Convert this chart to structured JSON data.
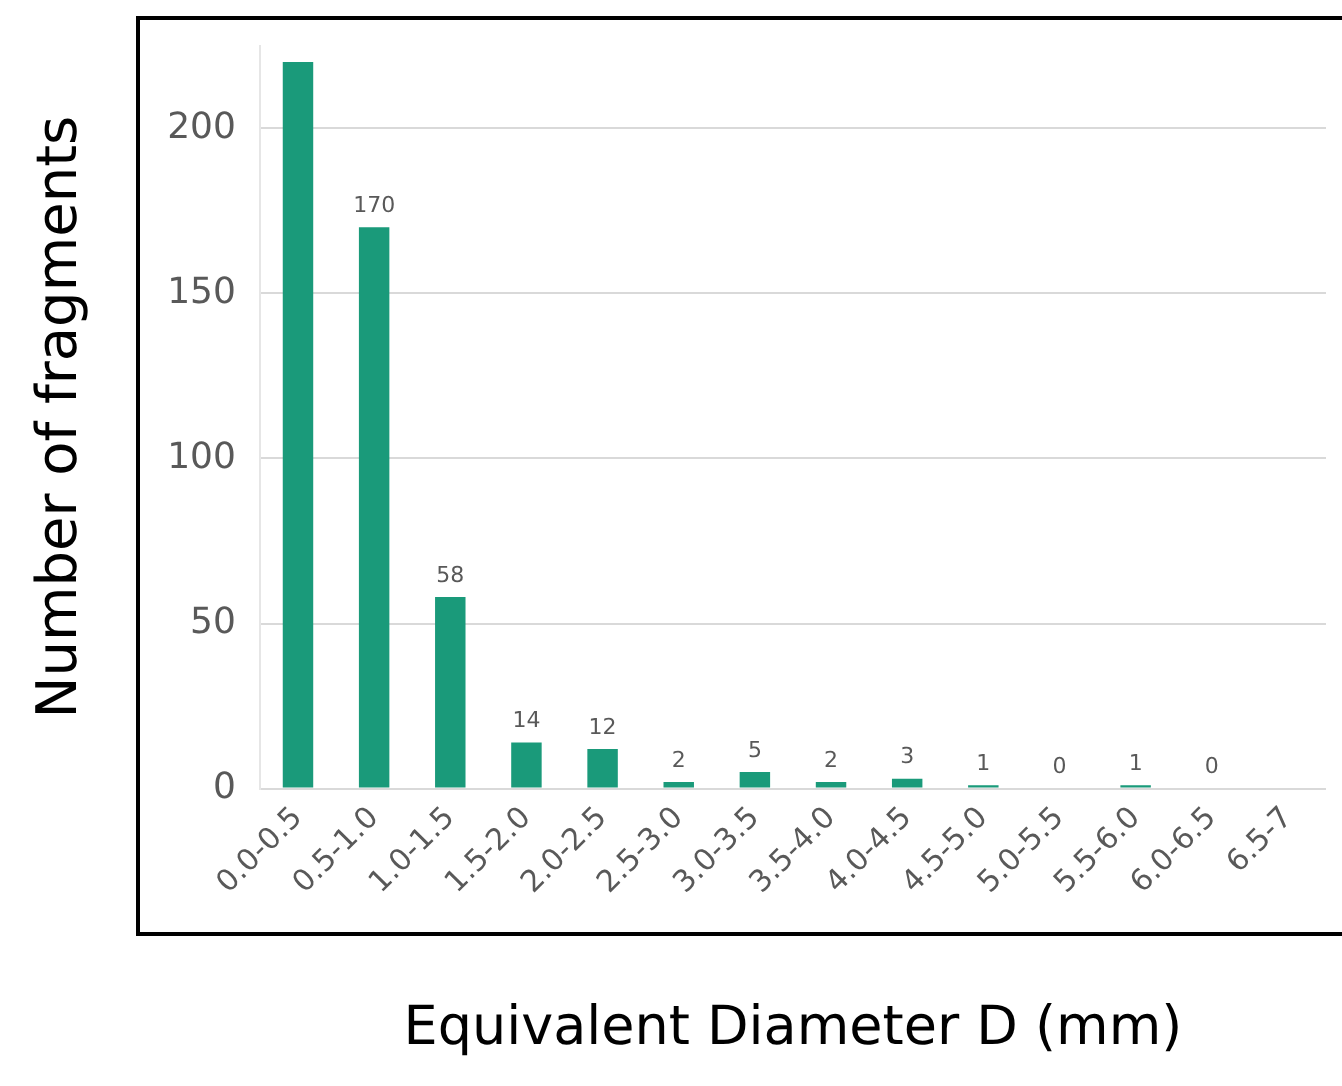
{
  "chart_data": {
    "type": "bar",
    "xlabel": "Equivalent Diameter D (mm)",
    "ylabel": "Number of fragments",
    "categories": [
      "0.0-0.5",
      "0.5-1.0",
      "1.0-1.5",
      "1.5-2.0",
      "2.0-2.5",
      "2.5-3.0",
      "3.0-3.5",
      "3.5-4.0",
      "4.0-4.5",
      "4.5-5.0",
      "5.0-5.5",
      "5.5-6.0",
      "6.0-6.5",
      "6.5-7"
    ],
    "values": [
      220,
      170,
      58,
      14,
      12,
      2,
      5,
      2,
      3,
      1,
      0,
      1,
      0,
      null
    ],
    "value_labels": [
      null,
      "170",
      "58",
      "14",
      "12",
      "2",
      "5",
      "2",
      "3",
      "1",
      "0",
      "1",
      "0",
      null
    ],
    "color": "#1a9a7a",
    "ylim": [
      0,
      225
    ],
    "yticks": [
      0,
      50,
      100,
      150,
      200
    ],
    "grid": "y",
    "legend": false
  }
}
